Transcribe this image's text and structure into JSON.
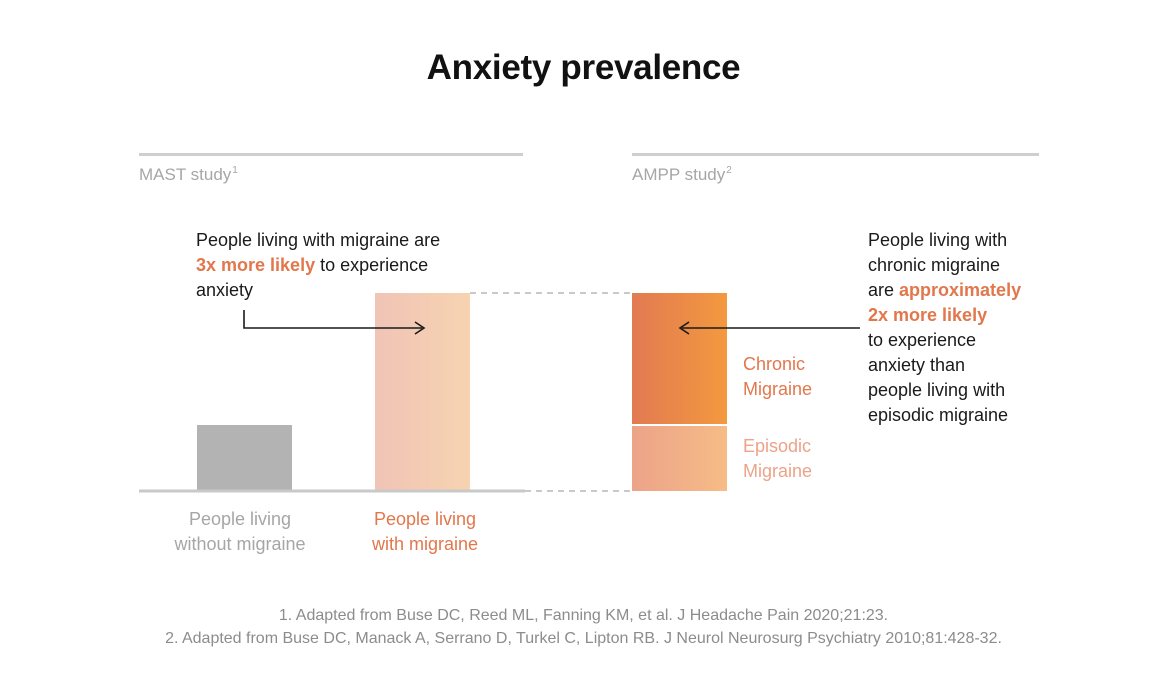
{
  "title": "Anxiety prevalence",
  "colors": {
    "grey_bar": "#b3b3b3",
    "migraine_bar_from": "#f0c4b6",
    "migraine_bar_to": "#f7d3b1",
    "chronic_from": "#e27a52",
    "chronic_to": "#f3993f",
    "episodic_from": "#eca389",
    "episodic_to": "#f6bc86",
    "accent": "#e2774c",
    "muted": "#a6a6a6"
  },
  "mast": {
    "label": "MAST study",
    "sup": "1",
    "callout": {
      "line1": "People living with migraine are",
      "highlight": "3x more likely",
      "rest": " to experience",
      "line3": "anxiety"
    }
  },
  "ampp": {
    "label": "AMPP study",
    "sup": "2",
    "callout": {
      "line1": "People living with",
      "line2": "chronic migraine",
      "line3_prefix": "are ",
      "highlight1": "approximately",
      "highlight2": "2x more likely",
      "line5": "to experience",
      "line6": "anxiety than",
      "line7": "people living with",
      "line8": "episodic migraine"
    }
  },
  "chart_data": [
    {
      "type": "bar",
      "categories": [
        "People living without migraine",
        "People living with migraine"
      ],
      "values": [
        1,
        3
      ]
    },
    {
      "type": "bar",
      "stacked": true,
      "categories": [
        "AMPP"
      ],
      "series": [
        {
          "name": "Episodic Migraine",
          "values": [
            1
          ]
        },
        {
          "name": "Chronic Migraine",
          "values": [
            2
          ]
        }
      ]
    }
  ],
  "labels": {
    "without_line1": "People living",
    "without_line2": "without migraine",
    "with_line1": "People living",
    "with_line2": "with migraine",
    "chronic_line1": "Chronic",
    "chronic_line2": "Migraine",
    "episodic_line1": "Episodic",
    "episodic_line2": "Migraine"
  },
  "footnotes": [
    "1. Adapted from Buse DC, Reed ML, Fanning KM, et al. J Headache Pain 2020;21:23.",
    "2. Adapted from Buse DC, Manack A, Serrano D, Turkel C, Lipton RB. J Neurol Neurosurg Psychiatry 2010;81:428-32."
  ]
}
